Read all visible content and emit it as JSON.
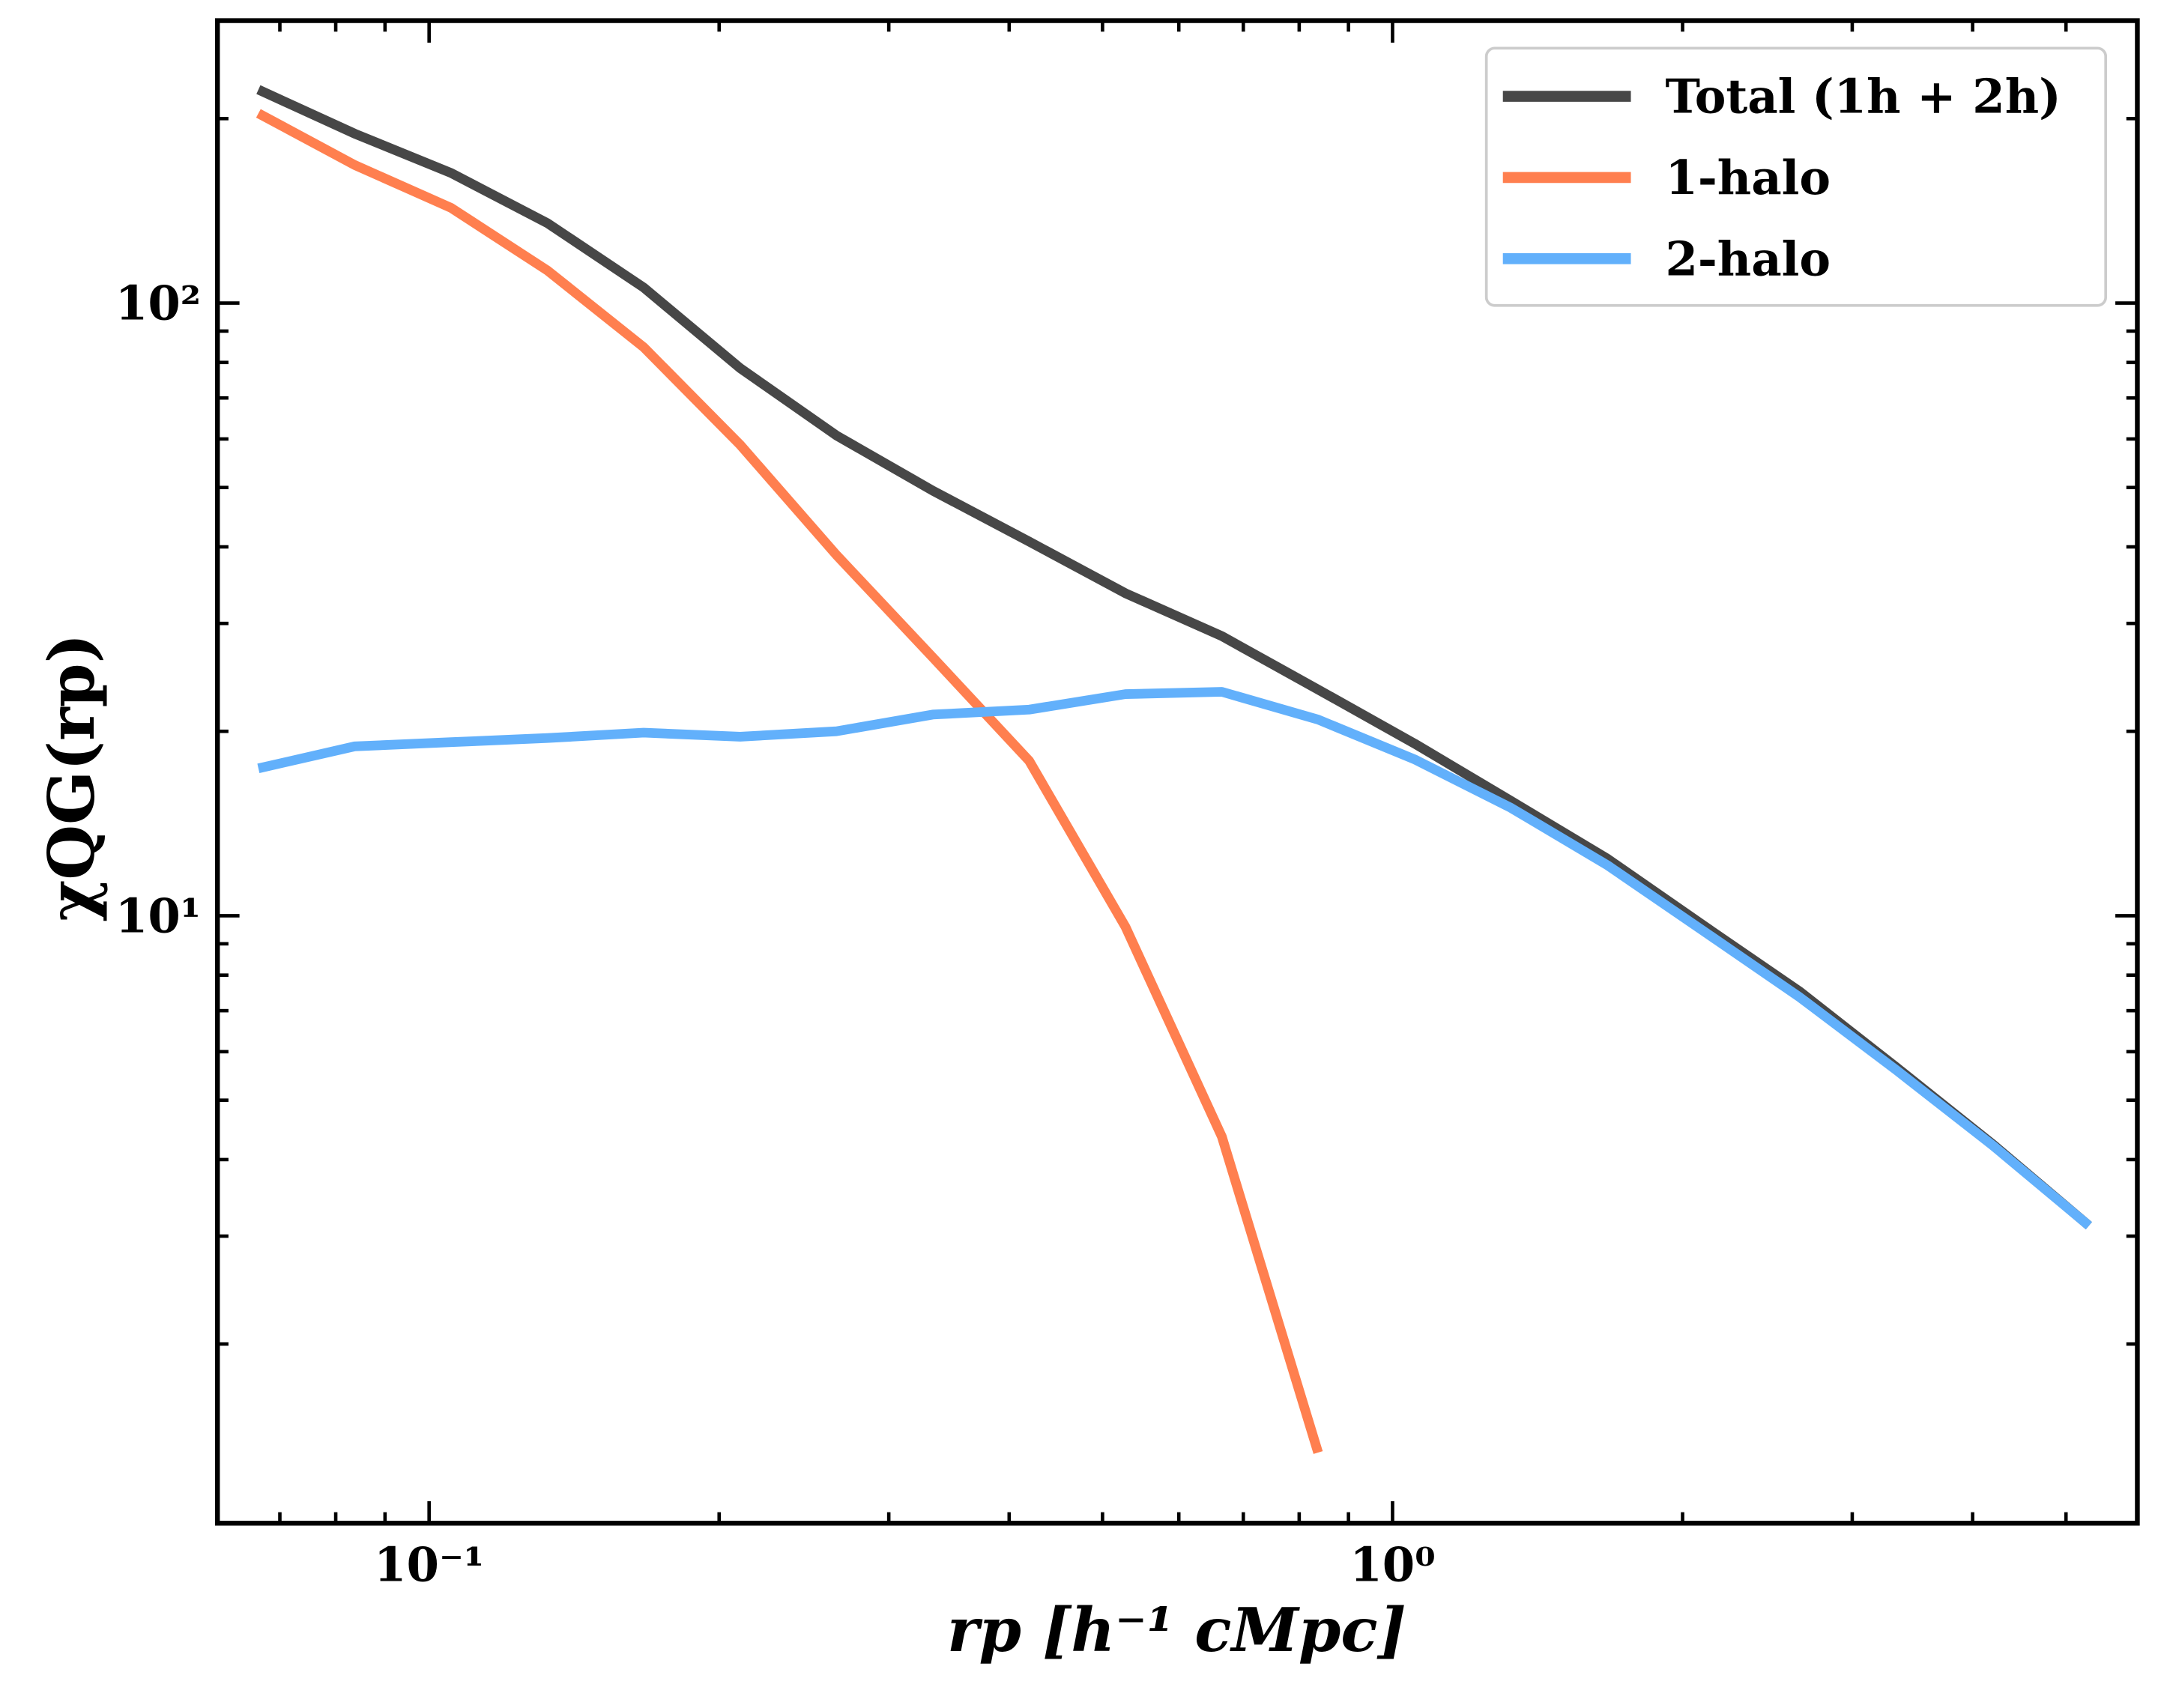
{
  "chart_data": {
    "type": "line",
    "xlabel": "rp [h⁻¹ cMpc]",
    "ylabel": "χQG(rp)",
    "xscale": "log",
    "yscale": "log",
    "xlim": [
      0.0603,
      5.93
    ],
    "ylim": [
      1.02,
      289
    ],
    "xticks": [
      {
        "value": 0.1,
        "label": "10⁻¹"
      },
      {
        "value": 1,
        "label": "10⁰"
      }
    ],
    "yticks": [
      {
        "value": 10,
        "label": "10¹"
      },
      {
        "value": 100,
        "label": "10²"
      }
    ],
    "xminor_ticks": [
      0.07,
      0.08,
      0.09,
      0.2,
      0.3,
      0.4,
      0.5,
      0.6,
      0.7,
      0.8,
      0.9,
      2,
      3,
      4,
      5
    ],
    "yminor_ticks": [
      2,
      3,
      4,
      5,
      6,
      7,
      8,
      9,
      20,
      30,
      40,
      50,
      60,
      70,
      80,
      90,
      200
    ],
    "legend": "upper right",
    "x": [
      0.0665,
      0.0837,
      0.1054,
      0.1327,
      0.167,
      0.2103,
      0.2647,
      0.3333,
      0.4196,
      0.5282,
      0.665,
      0.837,
      1.054,
      1.327,
      1.67,
      2.103,
      2.647,
      3.333,
      4.196,
      5.282
    ],
    "series": [
      {
        "name": "Total (1h + 2h)",
        "color": "#474747",
        "values": [
          223,
          189,
          163,
          135,
          106,
          78.3,
          60.8,
          49.4,
          40.8,
          33.6,
          28.6,
          23.4,
          19.1,
          15.4,
          12.4,
          9.64,
          7.52,
          5.66,
          4.24,
          3.12
        ]
      },
      {
        "name": "1-halo",
        "color": "#ff7f4f",
        "values": [
          204,
          168,
          143,
          113,
          84.7,
          58.7,
          38.8,
          26.4,
          17.9,
          9.59,
          4.36,
          1.33,
          null,
          null,
          null,
          null,
          null,
          null,
          null,
          null
        ]
      },
      {
        "name": "2-halo",
        "color": "#62b0fb",
        "values": [
          17.4,
          18.9,
          19.2,
          19.5,
          19.9,
          19.6,
          20.0,
          21.3,
          21.7,
          23.0,
          23.2,
          20.9,
          18.0,
          15.0,
          12.1,
          9.44,
          7.36,
          5.6,
          4.22,
          3.12
        ]
      }
    ]
  }
}
